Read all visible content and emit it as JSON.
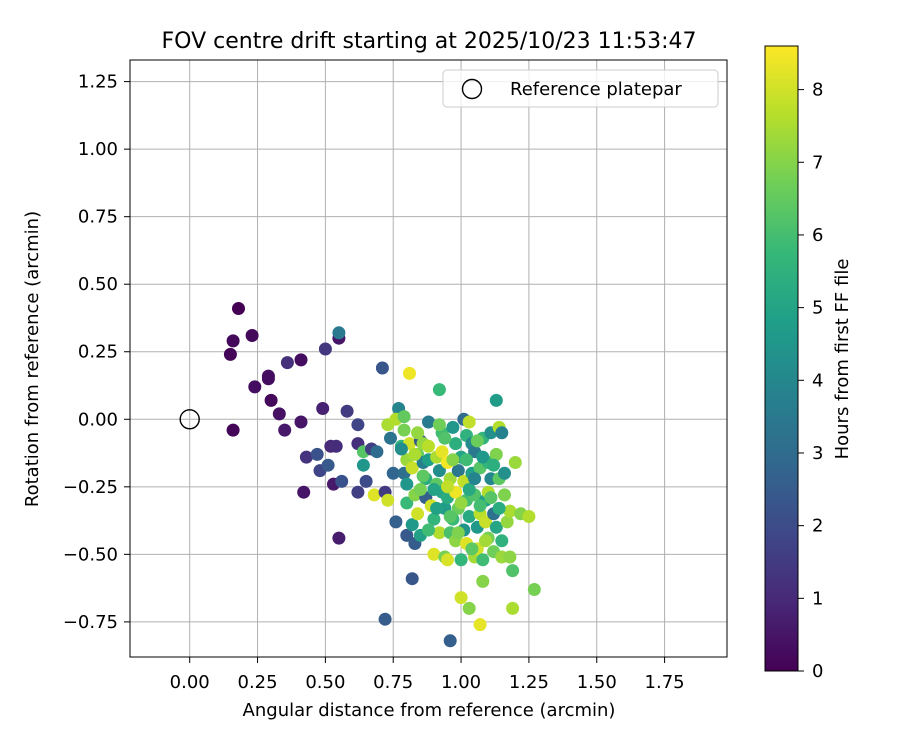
{
  "chart_data": {
    "type": "scatter",
    "title": "FOV centre drift starting at 2025/10/23 11:53:47",
    "xlabel": "Angular distance from reference (arcmin)",
    "ylabel": "Rotation from reference (arcmin)",
    "xlim": [
      -0.22,
      1.98
    ],
    "ylim": [
      -0.88,
      1.33
    ],
    "xticks": [
      0.0,
      0.25,
      0.5,
      0.75,
      1.0,
      1.25,
      1.5,
      1.75
    ],
    "xtick_labels": [
      "0.00",
      "0.25",
      "0.50",
      "0.75",
      "1.00",
      "1.25",
      "1.50",
      "1.75"
    ],
    "yticks": [
      -0.75,
      -0.5,
      -0.25,
      0.0,
      0.25,
      0.5,
      0.75,
      1.0,
      1.25
    ],
    "ytick_labels": [
      "−0.75",
      "−0.50",
      "−0.25",
      "0.00",
      "0.25",
      "0.50",
      "0.75",
      "1.00",
      "1.25"
    ],
    "grid": true,
    "legend": {
      "position": "top-right",
      "entries": [
        {
          "label": "Reference platepar",
          "marker": "open-circle"
        }
      ]
    },
    "reference_point": {
      "x": 0.0,
      "y": 0.0
    },
    "colorbar": {
      "label": "Hours from first FF file",
      "range": [
        0,
        8.6
      ],
      "ticks": [
        0,
        1,
        2,
        3,
        4,
        5,
        6,
        7,
        8
      ],
      "tick_labels": [
        "0",
        "1",
        "2",
        "3",
        "4",
        "5",
        "6",
        "7",
        "8"
      ],
      "colormap": "viridis",
      "colormap_stops": [
        "#440154",
        "#482878",
        "#3e4989",
        "#31688e",
        "#26828e",
        "#1f9e89",
        "#35b779",
        "#6ece58",
        "#b5de2b",
        "#fde725"
      ]
    },
    "points": [
      [
        0.15,
        0.24,
        0.1
      ],
      [
        0.16,
        0.29,
        0.2
      ],
      [
        0.18,
        0.41,
        0.0
      ],
      [
        0.16,
        -0.04,
        0.1
      ],
      [
        0.23,
        0.31,
        0.2
      ],
      [
        0.24,
        0.12,
        0.3
      ],
      [
        0.29,
        0.16,
        0.4
      ],
      [
        0.29,
        0.15,
        0.3
      ],
      [
        0.3,
        0.07,
        0.2
      ],
      [
        0.33,
        0.02,
        0.4
      ],
      [
        0.35,
        -0.04,
        0.6
      ],
      [
        0.36,
        0.21,
        1.2
      ],
      [
        0.41,
        0.22,
        0.3
      ],
      [
        0.41,
        -0.01,
        0.5
      ],
      [
        0.42,
        -0.27,
        0.5
      ],
      [
        0.43,
        -0.14,
        1.3
      ],
      [
        0.47,
        -0.13,
        2.2
      ],
      [
        0.48,
        -0.19,
        1.8
      ],
      [
        0.49,
        0.04,
        0.8
      ],
      [
        0.5,
        0.26,
        1.4
      ],
      [
        0.51,
        -0.17,
        2.4
      ],
      [
        0.52,
        -0.1,
        1.0
      ],
      [
        0.53,
        -0.24,
        0.6
      ],
      [
        0.54,
        -0.1,
        1.1
      ],
      [
        0.55,
        0.3,
        0.5
      ],
      [
        0.55,
        0.32,
        3.5
      ],
      [
        0.55,
        -0.44,
        0.7
      ],
      [
        0.56,
        -0.23,
        2.2
      ],
      [
        0.58,
        0.03,
        1.5
      ],
      [
        0.62,
        -0.09,
        1.2
      ],
      [
        0.62,
        -0.02,
        1.8
      ],
      [
        0.62,
        -0.27,
        1.6
      ],
      [
        0.64,
        -0.17,
        4.5
      ],
      [
        0.64,
        -0.12,
        6.3
      ],
      [
        0.65,
        -0.23,
        2.0
      ],
      [
        0.67,
        -0.11,
        1.6
      ],
      [
        0.68,
        -0.28,
        8.2
      ],
      [
        0.69,
        -0.12,
        3.0
      ],
      [
        0.71,
        0.19,
        2.3
      ],
      [
        0.72,
        -0.74,
        2.5
      ],
      [
        0.72,
        -0.27,
        1.5
      ],
      [
        0.73,
        -0.3,
        8.0
      ],
      [
        0.73,
        -0.02,
        7.5
      ],
      [
        0.74,
        -0.07,
        3.3
      ],
      [
        0.75,
        -0.2,
        2.8
      ],
      [
        0.76,
        -0.38,
        2.6
      ],
      [
        0.77,
        0.04,
        3.9
      ],
      [
        0.78,
        -0.1,
        5.5
      ],
      [
        0.79,
        -0.04,
        6.8
      ],
      [
        0.79,
        -0.2,
        3.1
      ],
      [
        0.8,
        -0.15,
        7.3
      ],
      [
        0.8,
        -0.31,
        5.8
      ],
      [
        0.8,
        -0.43,
        2.4
      ],
      [
        0.81,
        0.17,
        8.4
      ],
      [
        0.81,
        -0.09,
        8.0
      ],
      [
        0.82,
        -0.18,
        7.9
      ],
      [
        0.82,
        -0.59,
        2.3
      ],
      [
        0.82,
        -0.39,
        4.6
      ],
      [
        0.83,
        -0.28,
        7.0
      ],
      [
        0.83,
        -0.46,
        2.5
      ],
      [
        0.84,
        -0.35,
        8.0
      ],
      [
        0.84,
        -0.13,
        6.6
      ],
      [
        0.85,
        -0.43,
        4.9
      ],
      [
        0.85,
        -0.08,
        2.4
      ],
      [
        0.86,
        -0.16,
        3.7
      ],
      [
        0.86,
        -0.09,
        7.2
      ],
      [
        0.87,
        -0.29,
        2.6
      ],
      [
        0.87,
        -0.22,
        5.3
      ],
      [
        0.88,
        -0.15,
        4.8
      ],
      [
        0.88,
        -0.01,
        3.6
      ],
      [
        0.89,
        -0.32,
        8.0
      ],
      [
        0.9,
        -0.5,
        8.2
      ],
      [
        0.9,
        -0.37,
        5.6
      ],
      [
        0.91,
        -0.14,
        7.5
      ],
      [
        0.91,
        -0.24,
        6.4
      ],
      [
        0.92,
        0.11,
        5.8
      ],
      [
        0.92,
        -0.19,
        4.2
      ],
      [
        0.92,
        -0.42,
        7.6
      ],
      [
        0.93,
        -0.12,
        8.3
      ],
      [
        0.93,
        -0.27,
        5.1
      ],
      [
        0.93,
        -0.05,
        5.9
      ],
      [
        0.94,
        -0.51,
        6.8
      ],
      [
        0.94,
        -0.33,
        4.7
      ],
      [
        0.95,
        -0.16,
        8.5
      ],
      [
        0.95,
        -0.52,
        8.1
      ],
      [
        0.95,
        -0.29,
        5.3
      ],
      [
        0.96,
        -0.82,
        2.6
      ],
      [
        0.96,
        -0.22,
        7.4
      ],
      [
        0.96,
        -0.42,
        6.1
      ],
      [
        0.97,
        -0.03,
        4.5
      ],
      [
        0.97,
        -0.37,
        5.8
      ],
      [
        0.98,
        -0.27,
        8.4
      ],
      [
        0.98,
        -0.09,
        5.4
      ],
      [
        0.98,
        -0.45,
        7.1
      ],
      [
        0.99,
        -0.19,
        3.4
      ],
      [
        0.99,
        -0.33,
        6.6
      ],
      [
        1.0,
        -0.66,
        8.0
      ],
      [
        1.0,
        -0.14,
        5.0
      ],
      [
        1.0,
        -0.52,
        5.7
      ],
      [
        1.01,
        0.0,
        3.0
      ],
      [
        1.01,
        -0.41,
        4.4
      ],
      [
        1.01,
        -0.23,
        7.8
      ],
      [
        1.02,
        -0.3,
        6.0
      ],
      [
        1.02,
        -0.06,
        5.5
      ],
      [
        1.02,
        -0.46,
        8.2
      ],
      [
        1.03,
        -0.01,
        7.8
      ],
      [
        1.03,
        -0.7,
        7.0
      ],
      [
        1.03,
        -0.36,
        5.2
      ],
      [
        1.04,
        -0.2,
        4.8
      ],
      [
        1.04,
        -0.09,
        4.1
      ],
      [
        1.05,
        -0.51,
        7.4
      ],
      [
        1.05,
        -0.28,
        6.2
      ],
      [
        1.05,
        -0.12,
        3.5
      ],
      [
        1.06,
        -0.4,
        4.6
      ],
      [
        1.06,
        -0.48,
        8.0
      ],
      [
        1.07,
        -0.76,
        8.3
      ],
      [
        1.07,
        -0.35,
        7.7
      ],
      [
        1.07,
        -0.18,
        6.3
      ],
      [
        1.08,
        -0.6,
        7.0
      ],
      [
        1.08,
        -0.07,
        5.6
      ],
      [
        1.08,
        -0.52,
        5.9
      ],
      [
        1.09,
        -0.3,
        4.8
      ],
      [
        1.09,
        -0.38,
        7.9
      ],
      [
        1.1,
        -0.16,
        5.7
      ],
      [
        1.1,
        -0.27,
        7.6
      ],
      [
        1.1,
        -0.44,
        6.8
      ],
      [
        1.11,
        -0.05,
        4.3
      ],
      [
        1.11,
        -0.22,
        4.0
      ],
      [
        1.12,
        -0.35,
        3.2
      ],
      [
        1.12,
        -0.49,
        6.7
      ],
      [
        1.13,
        0.07,
        4.7
      ],
      [
        1.13,
        -0.13,
        6.9
      ],
      [
        1.13,
        -0.4,
        5.1
      ],
      [
        1.14,
        -0.03,
        7.6
      ],
      [
        1.14,
        -0.22,
        6.4
      ],
      [
        1.15,
        -0.45,
        5.5
      ],
      [
        1.15,
        -0.51,
        7.3
      ],
      [
        1.15,
        -0.05,
        3.8
      ],
      [
        1.16,
        -0.28,
        6.9
      ],
      [
        1.16,
        -0.2,
        4.3
      ],
      [
        1.17,
        -0.38,
        7.2
      ],
      [
        1.18,
        -0.51,
        7.1
      ],
      [
        1.18,
        -0.34,
        7.5
      ],
      [
        1.19,
        -0.7,
        7.5
      ],
      [
        1.19,
        -0.56,
        6.2
      ],
      [
        1.2,
        -0.16,
        7.3
      ],
      [
        1.22,
        -0.35,
        7.0
      ],
      [
        1.25,
        -0.36,
        7.6
      ],
      [
        1.27,
        -0.63,
        6.8
      ],
      [
        0.76,
        0.0,
        7.6
      ],
      [
        0.79,
        0.01,
        6.5
      ],
      [
        0.83,
        -0.13,
        7.5
      ],
      [
        0.86,
        -0.21,
        6.4
      ],
      [
        0.88,
        -0.1,
        7.7
      ],
      [
        0.9,
        -0.26,
        5.0
      ],
      [
        0.92,
        -0.02,
        6.7
      ],
      [
        0.94,
        -0.07,
        6.2
      ],
      [
        0.95,
        -0.25,
        7.8
      ],
      [
        0.97,
        -0.15,
        7.0
      ],
      [
        0.99,
        -0.42,
        6.9
      ],
      [
        1.0,
        -0.31,
        7.2
      ],
      [
        1.02,
        -0.15,
        5.9
      ],
      [
        1.03,
        -0.26,
        5.2
      ],
      [
        1.04,
        -0.48,
        6.4
      ],
      [
        1.06,
        -0.08,
        6.6
      ],
      [
        1.07,
        -0.32,
        6.0
      ],
      [
        1.09,
        -0.45,
        7.4
      ],
      [
        1.11,
        -0.29,
        6.3
      ],
      [
        1.12,
        -0.17,
        5.4
      ],
      [
        1.14,
        -0.33,
        5.3
      ],
      [
        0.85,
        -0.26,
        6.8
      ],
      [
        0.88,
        -0.41,
        5.9
      ],
      [
        0.91,
        -0.33,
        4.9
      ],
      [
        0.96,
        -0.36,
        6.3
      ],
      [
        1.05,
        -0.22,
        3.9
      ],
      [
        1.08,
        -0.14,
        4.6
      ],
      [
        0.8,
        -0.24,
        4.5
      ],
      [
        0.78,
        -0.11,
        4.2
      ],
      [
        0.84,
        -0.05,
        7.2
      ]
    ]
  }
}
